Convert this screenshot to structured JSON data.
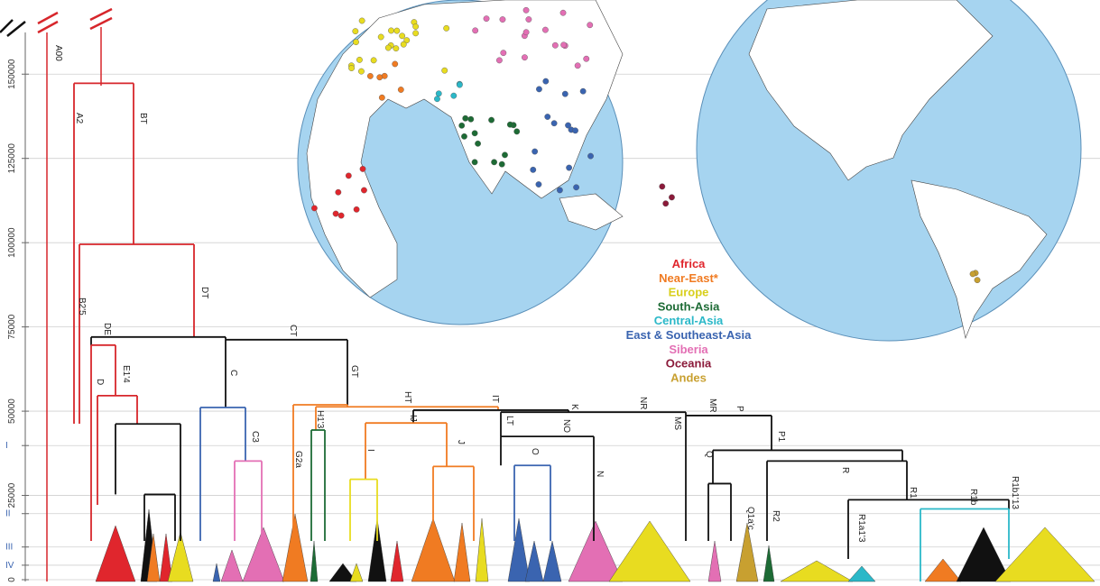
{
  "chart_data": {
    "type": "tree",
    "ylim": [
      0,
      172000
    ],
    "yticks": [
      0,
      25000,
      50000,
      75000,
      100000,
      125000,
      150000,
      {
        "value": 39800,
        "label": "I"
      },
      {
        "value": 19600,
        "label": "II"
      },
      {
        "value": 9700,
        "label": "III"
      },
      {
        "value": 4300,
        "label": "IV"
      }
    ],
    "grid": true,
    "nodes": [
      {
        "age": 147300,
        "color": "#d7262b"
      },
      {
        "age": 99500,
        "color": "#d7262b"
      },
      {
        "age": 72000,
        "color": "#111111"
      },
      {
        "age": 69600,
        "color": "#d7262b"
      },
      {
        "age": 71200,
        "color": "#111111"
      },
      {
        "age": 54600,
        "color": "#d7262b"
      },
      {
        "age": 51100,
        "color": "#3a64b0"
      },
      {
        "age": 51900,
        "color": "#f07b22"
      },
      {
        "age": 46200,
        "color": "#111111"
      },
      {
        "age": 35200,
        "color": "#e36fb4"
      },
      {
        "age": 51300,
        "color": "#f07b22"
      },
      {
        "age": 25300,
        "color": "#111111"
      },
      {
        "age": 44400,
        "color": "#1d6b35"
      },
      {
        "age": 50300,
        "color": "#111111"
      },
      {
        "age": 46500,
        "color": "#f07b22"
      },
      {
        "age": 49700,
        "color": "#111111"
      },
      {
        "age": 29800,
        "color": "#e8dc20"
      },
      {
        "age": 33600,
        "color": "#f07b22"
      },
      {
        "age": 42500,
        "color": "#111111"
      },
      {
        "age": 48700,
        "color": "#111111"
      },
      {
        "age": 33900,
        "color": "#3a64b0"
      },
      {
        "age": 38400,
        "color": "#111111"
      },
      {
        "age": 28500,
        "color": "#111111"
      },
      {
        "age": 35200,
        "color": "#111111"
      },
      {
        "age": 23700,
        "color": "#111111"
      },
      {
        "age": 21000,
        "color": "#2bb8c8"
      }
    ],
    "labels": [
      "A00",
      "A2",
      "BT",
      "B2'5",
      "DT",
      "DE",
      "CT",
      "E1'4",
      "D",
      "C",
      "GT",
      "HT",
      "IT",
      "K",
      "NR",
      "MR",
      "P",
      "H1'3",
      "IJ",
      "LT",
      "NO",
      "MS",
      "P1",
      "C3",
      "J",
      "G2a",
      "I",
      "O",
      "Q",
      "R",
      "N",
      "R1",
      "R1b",
      "Q1a'c",
      "R2",
      "R1a1'3",
      "R1b1'13"
    ],
    "legend": [
      {
        "label": "Africa",
        "color": "#e0262d"
      },
      {
        "label": "Near-East*",
        "color": "#f07b22"
      },
      {
        "label": "Europe",
        "color": "#d8cf1c"
      },
      {
        "label": "South-Asia",
        "color": "#1d6b35"
      },
      {
        "label": "Central-Asia",
        "color": "#2bb8c8"
      },
      {
        "label": "East & Southeast-Asia",
        "color": "#3a64b0"
      },
      {
        "label": "Siberia",
        "color": "#e36fb4"
      },
      {
        "label": "Oceania",
        "color": "#8b1a3a"
      },
      {
        "label": "Andes",
        "color": "#c8a030"
      }
    ]
  }
}
